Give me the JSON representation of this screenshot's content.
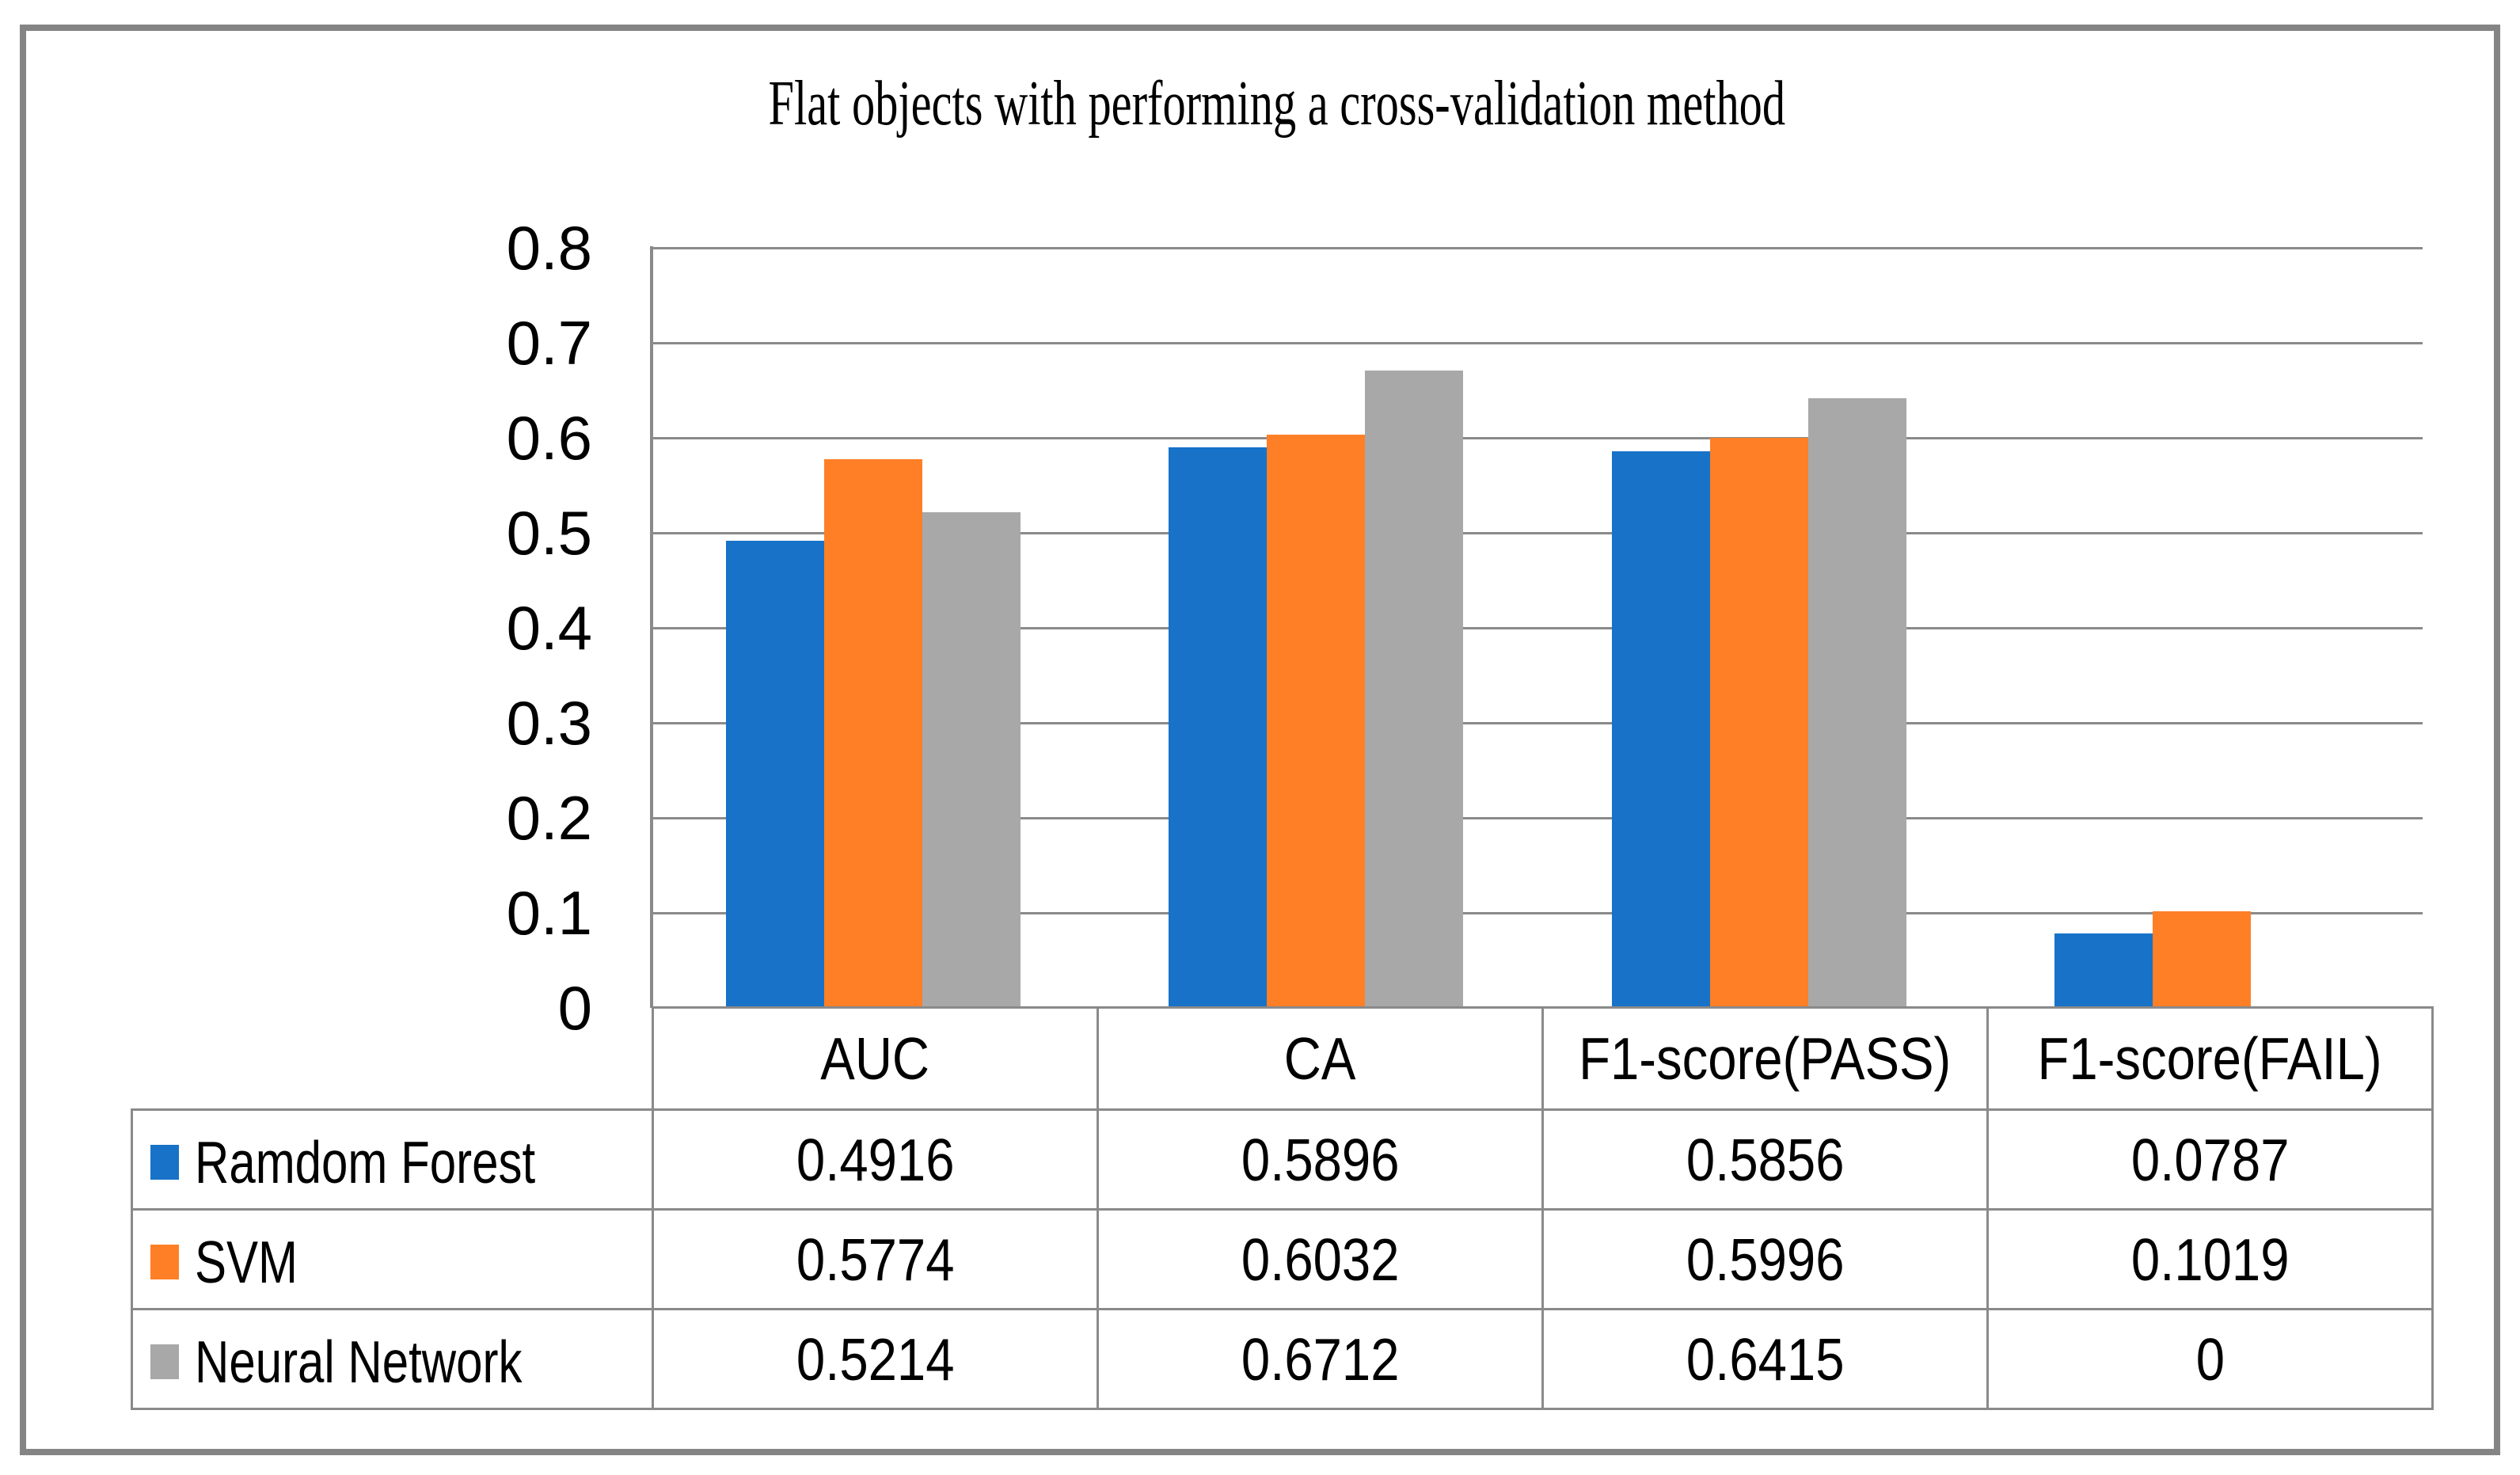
{
  "chart_data": {
    "type": "bar",
    "title": "Flat objects with performing a cross-validation method",
    "categories": [
      "AUC",
      "CA",
      "F1-score(PASS)",
      "F1-score(FAIL)"
    ],
    "series": [
      {
        "name": "Ramdom Forest",
        "color": "#1772C8",
        "values": [
          0.4916,
          0.5896,
          0.5856,
          0.0787
        ]
      },
      {
        "name": "SVM",
        "color": "#FF7F26",
        "values": [
          0.5774,
          0.6032,
          0.5996,
          0.1019
        ]
      },
      {
        "name": "Neural Network",
        "color": "#A8A8A8",
        "values": [
          0.5214,
          0.6712,
          0.6415,
          0
        ]
      }
    ],
    "xlabel": "",
    "ylabel": "",
    "ylim": [
      0,
      0.8
    ],
    "ytick_step": 0.1,
    "yticks": [
      "0.8",
      "0.7",
      "0.6",
      "0.5",
      "0.4",
      "0.3",
      "0.2",
      "0.1",
      "0"
    ],
    "grid": true,
    "legend_position": "table-left",
    "colors": {
      "gridline": "#8A8A8A",
      "table_border": "#8A8A8A",
      "frame_border": "#848484",
      "text": "#000000",
      "background": "#FFFFFF"
    }
  },
  "table": {
    "column_headers": [
      "AUC",
      "CA",
      "F1-score(PASS)",
      "F1-score(FAIL)"
    ],
    "rows": [
      {
        "label": "Ramdom Forest",
        "swatch_color": "#1772C8",
        "values": [
          "0.4916",
          "0.5896",
          "0.5856",
          "0.0787"
        ]
      },
      {
        "label": "SVM",
        "swatch_color": "#FF7F26",
        "values": [
          "0.5774",
          "0.6032",
          "0.5996",
          "0.1019"
        ]
      },
      {
        "label": "Neural Network",
        "swatch_color": "#A8A8A8",
        "values": [
          "0.5214",
          "0.6712",
          "0.6415",
          "0"
        ]
      }
    ]
  }
}
